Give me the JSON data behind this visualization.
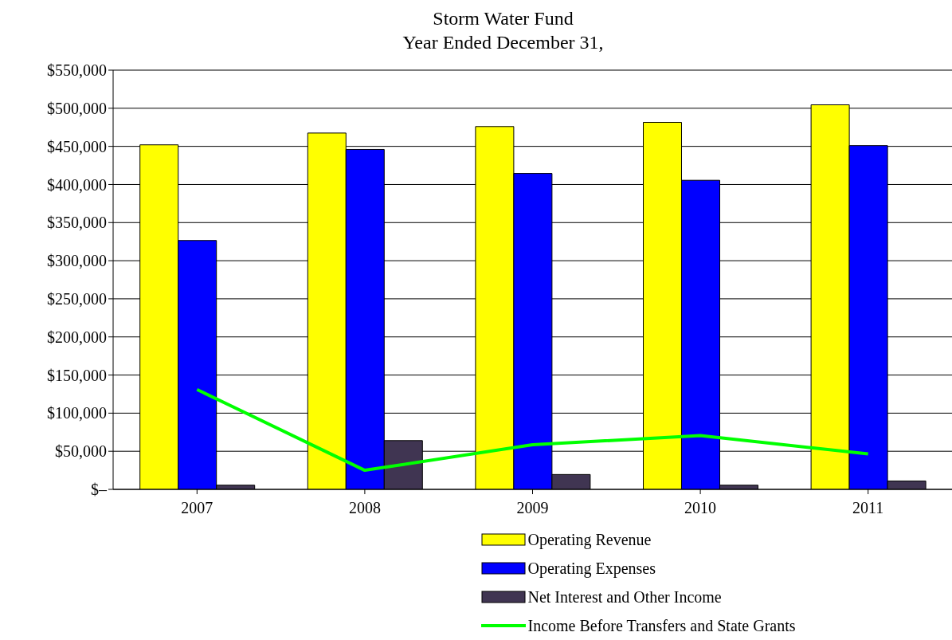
{
  "chart_data": {
    "type": "bar",
    "title": "Storm Water Fund",
    "subtitle": "Year Ended December 31,",
    "categories": [
      "2007",
      "2008",
      "2009",
      "2010",
      "2011"
    ],
    "series": [
      {
        "name": "Operating Revenue",
        "color": "#ffff00",
        "values": [
          452000,
          467500,
          476000,
          481500,
          504500
        ]
      },
      {
        "name": "Operating Expenses",
        "color": "#0000ff",
        "values": [
          326500,
          446000,
          414500,
          405500,
          451000
        ]
      },
      {
        "name": "Net Interest and Other Income",
        "color": "#403552",
        "values": [
          5500,
          64000,
          19500,
          5500,
          11000
        ]
      },
      {
        "name": "Income Before Transfers and State Grants",
        "type": "line",
        "color": "#00ff00",
        "values": [
          131000,
          25000,
          58500,
          70500,
          46500
        ]
      }
    ],
    "ylim": [
      0,
      550000
    ],
    "yticks": [
      {
        "value": 0,
        "label": "$–"
      },
      {
        "value": 50000,
        "label": "$50,000"
      },
      {
        "value": 100000,
        "label": "$100,000"
      },
      {
        "value": 150000,
        "label": "$150,000"
      },
      {
        "value": 200000,
        "label": "$200,000"
      },
      {
        "value": 250000,
        "label": "$250,000"
      },
      {
        "value": 300000,
        "label": "$300,000"
      },
      {
        "value": 350000,
        "label": "$350,000"
      },
      {
        "value": 400000,
        "label": "$400,000"
      },
      {
        "value": 450000,
        "label": "$450,000"
      },
      {
        "value": 500000,
        "label": "$500,000"
      },
      {
        "value": 550000,
        "label": "$550,000"
      }
    ],
    "grid": "y",
    "legend": "bottom",
    "marker": "none"
  }
}
